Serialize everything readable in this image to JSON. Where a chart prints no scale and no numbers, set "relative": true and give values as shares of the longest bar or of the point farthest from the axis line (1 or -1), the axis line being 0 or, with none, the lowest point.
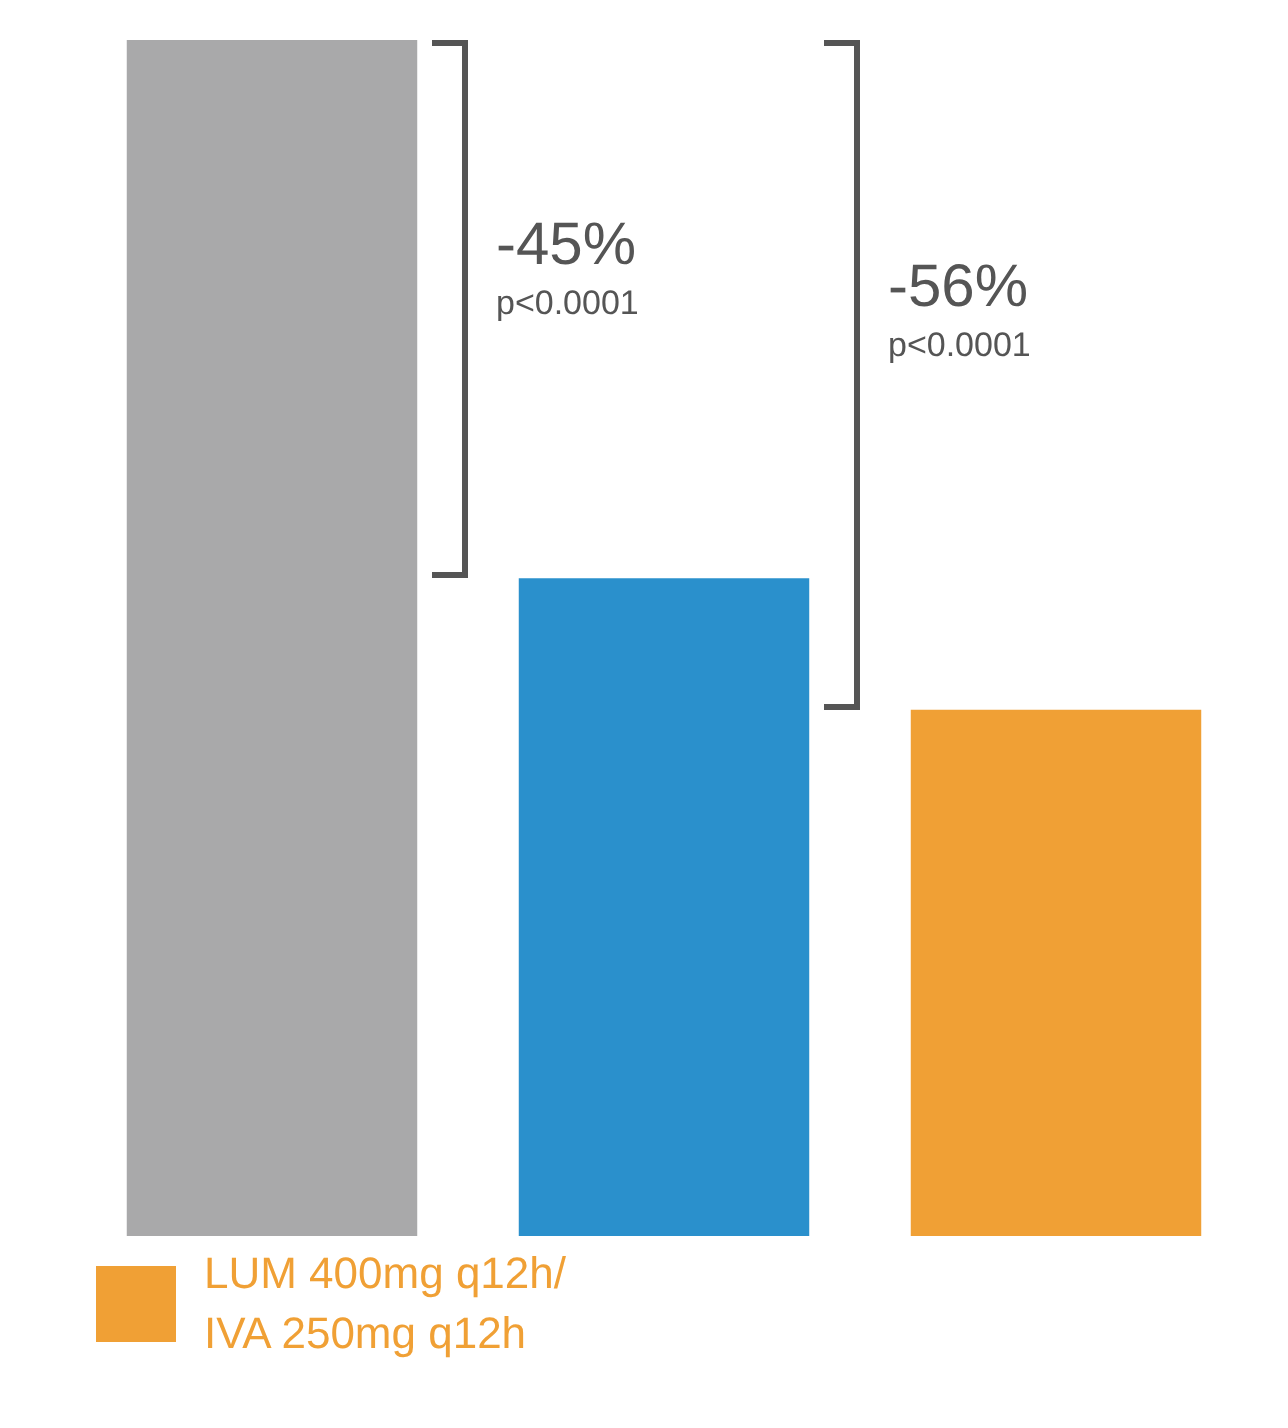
{
  "chart_data": {
    "type": "bar",
    "relative": true,
    "categories": [
      null,
      null,
      null
    ],
    "values": [
      1,
      0.55,
      0.44
    ],
    "colors": [
      "#a9a9aa",
      "#2a90cc",
      "#f0a035"
    ],
    "annotations": [
      "-45%",
      "p<0.0001",
      "-56%",
      "p<0.0001",
      "LUM 400mg q12h/ IVA 250mg q12h"
    ]
  }
}
